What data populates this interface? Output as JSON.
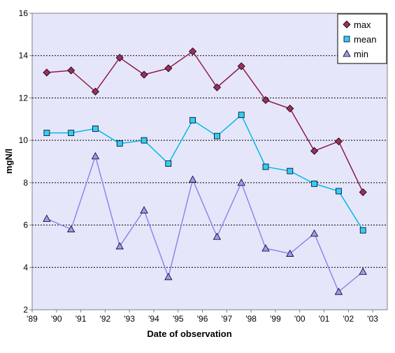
{
  "chart_data": {
    "type": "line",
    "xlabel": "Date of observation",
    "ylabel": "mgN/l",
    "xlim": [
      1989,
      2003.6
    ],
    "ylim": [
      2,
      16
    ],
    "y_ticks": [
      2,
      4,
      6,
      8,
      10,
      12,
      14,
      16
    ],
    "x_ticks": [
      {
        "value": 1989,
        "label": "'89"
      },
      {
        "value": 1990,
        "label": "'90"
      },
      {
        "value": 1991,
        "label": "'91"
      },
      {
        "value": 1992,
        "label": "'92"
      },
      {
        "value": 1993,
        "label": "'93"
      },
      {
        "value": 1994,
        "label": "'94"
      },
      {
        "value": 1995,
        "label": "'95"
      },
      {
        "value": 1996,
        "label": "'96"
      },
      {
        "value": 1997,
        "label": "'97"
      },
      {
        "value": 1998,
        "label": "'98"
      },
      {
        "value": 1999,
        "label": "'99"
      },
      {
        "value": 2000,
        "label": "'00"
      },
      {
        "value": 2001,
        "label": "'01"
      },
      {
        "value": 2002,
        "label": "'02"
      },
      {
        "value": 2003,
        "label": "'03"
      }
    ],
    "grid": {
      "horizontal": true,
      "vertical": false
    },
    "legend_position": "top-right",
    "plot_background": "#e6e6fa",
    "x": [
      1989.6,
      1990.6,
      1991.6,
      1992.6,
      1993.6,
      1994.6,
      1995.6,
      1996.6,
      1997.6,
      1998.6,
      1999.6,
      2000.6,
      2001.6,
      2002.6
    ],
    "series": [
      {
        "name": "max",
        "marker": "diamond",
        "color": "#9c2f5e",
        "line_color": "#8b1a4a",
        "values": [
          13.2,
          13.3,
          12.3,
          13.9,
          13.1,
          13.4,
          14.2,
          12.5,
          13.5,
          11.9,
          11.5,
          9.5,
          9.95,
          7.55
        ]
      },
      {
        "name": "mean",
        "marker": "square",
        "color": "#33ccff",
        "line_color": "#00b8e8",
        "values": [
          10.35,
          10.35,
          10.55,
          9.85,
          10.0,
          8.9,
          10.95,
          10.2,
          11.2,
          8.75,
          8.55,
          7.95,
          7.6,
          5.75
        ]
      },
      {
        "name": "min",
        "marker": "triangle",
        "color": "#9999ff",
        "line_color": "#8888ee",
        "values": [
          6.3,
          5.8,
          9.25,
          5.0,
          6.7,
          3.55,
          8.15,
          5.45,
          8.0,
          4.9,
          4.65,
          5.6,
          2.85,
          3.8
        ]
      }
    ]
  }
}
